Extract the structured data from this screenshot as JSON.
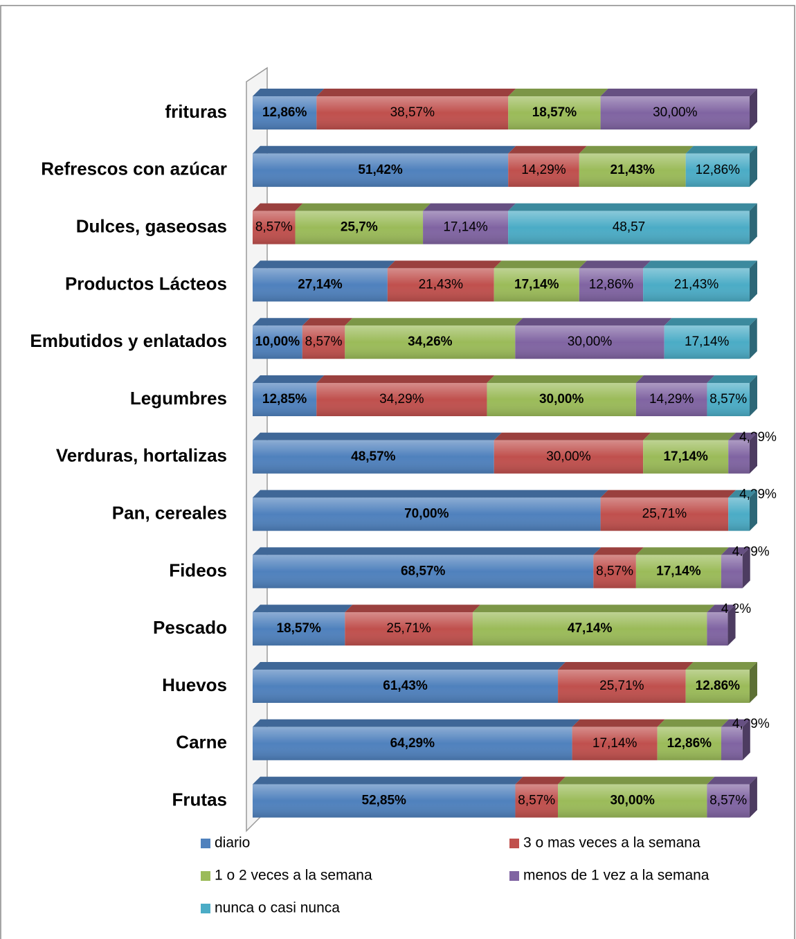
{
  "chart_data": {
    "type": "bar",
    "orientation": "horizontal",
    "stacked": true,
    "categories": [
      "frituras",
      "Refrescos con azúcar",
      "Dulces, gaseosas",
      "Productos Lácteos",
      "Embutidos y enlatados",
      "Legumbres",
      "Verduras, hortalizas",
      "Pan, cereales",
      "Fideos",
      "Pescado",
      "Huevos",
      "Carne",
      "Frutas"
    ],
    "xlim": [
      0,
      100
    ],
    "series": [
      {
        "name": "diario",
        "color": "#4f81bd",
        "values": [
          12.86,
          51.42,
          null,
          27.14,
          10.0,
          12.85,
          48.57,
          70.0,
          68.57,
          18.57,
          61.43,
          64.29,
          52.85
        ],
        "value_labels": [
          "12,86%",
          "51,42%",
          null,
          "27,14%",
          "10,00%",
          "12,85%",
          "48,57%",
          "70,00%",
          "68,57%",
          "18,57%",
          "61,43%",
          "64,29%",
          "52,85%"
        ]
      },
      {
        "name": "3 o mas veces a la semana",
        "color": "#c0504d",
        "values": [
          38.57,
          14.29,
          8.57,
          21.43,
          8.57,
          34.29,
          30.0,
          25.71,
          8.57,
          25.71,
          25.71,
          17.14,
          8.57
        ],
        "value_labels": [
          "38,57%",
          "14,29%",
          "8,57%",
          "21,43%",
          "8,57%",
          "34,29%",
          "30,00%",
          "25,71%",
          "8,57%",
          "25,71%",
          "25,71%",
          "17,14%",
          "8,57%"
        ]
      },
      {
        "name": "1 o 2 veces a la semana",
        "color": "#9bbb59",
        "values": [
          18.57,
          21.43,
          25.7,
          17.14,
          34.26,
          30.0,
          17.14,
          null,
          17.14,
          47.14,
          12.86,
          12.86,
          30.0
        ],
        "value_labels": [
          "18,57%",
          "21,43%",
          "25,7%",
          "17,14%",
          "34,26%",
          "30,00%",
          "17,14%",
          null,
          "17,14%",
          "47,14%",
          "12.86%",
          "12,86%",
          "30,00%"
        ]
      },
      {
        "name": "menos de 1 vez a la semana",
        "color": "#8064a2",
        "values": [
          30.0,
          null,
          17.14,
          12.86,
          30.0,
          14.29,
          4.29,
          null,
          4.29,
          4.2,
          null,
          4.29,
          8.57
        ],
        "value_labels": [
          "30,00%",
          null,
          "17,14%",
          "12,86%",
          "30,00%",
          "14,29%",
          "4,29%",
          null,
          "4.29%",
          "4,2%",
          null,
          "4,29%",
          "8,57%"
        ]
      },
      {
        "name": "nunca o casi nunca",
        "color": "#4bacc6",
        "values": [
          null,
          12.86,
          48.57,
          21.43,
          17.14,
          8.57,
          null,
          4.29,
          null,
          null,
          null,
          null,
          null
        ],
        "value_labels": [
          null,
          "12,86%",
          "48,57",
          "21,43%",
          "17,14%",
          "8,57%",
          null,
          "4,29%",
          null,
          null,
          null,
          null,
          null
        ]
      }
    ],
    "legend": "bottom"
  }
}
